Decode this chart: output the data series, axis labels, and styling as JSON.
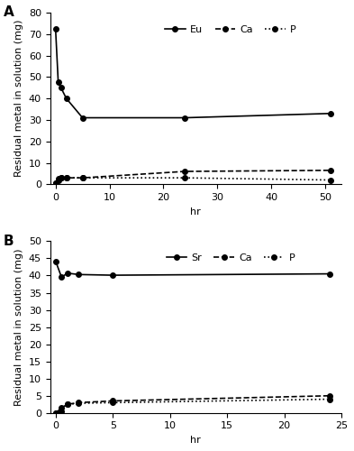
{
  "panel_A": {
    "label": "A",
    "eu_x": [
      0,
      0.5,
      1,
      2,
      5,
      24,
      51
    ],
    "eu_y": [
      72.5,
      47.5,
      45,
      40,
      31,
      31,
      33
    ],
    "ca_x": [
      0,
      0.5,
      1,
      2,
      5,
      24,
      51
    ],
    "ca_y": [
      0.5,
      2.5,
      3,
      3,
      3,
      6,
      6.5
    ],
    "p_x": [
      0,
      0.5,
      1,
      2,
      5,
      24,
      51
    ],
    "p_y": [
      0.5,
      2,
      3,
      3,
      3,
      3,
      2
    ],
    "ylim": [
      0,
      80
    ],
    "yticks": [
      0,
      10,
      20,
      30,
      40,
      50,
      60,
      70,
      80
    ],
    "xlim": [
      -1,
      53
    ],
    "xticks": [
      0,
      10,
      20,
      30,
      40,
      50
    ],
    "xlabel": "hr",
    "ylabel": "Residual metal in solution (mg)",
    "eu_label": "Eu",
    "ca_label": "Ca",
    "p_label": "P"
  },
  "panel_B": {
    "label": "B",
    "sr_x": [
      0,
      0.5,
      1,
      2,
      5,
      24
    ],
    "sr_y": [
      44,
      39.5,
      40.7,
      40.3,
      40.1,
      40.5
    ],
    "ca_x": [
      0,
      0.5,
      1,
      2,
      5,
      24
    ],
    "ca_y": [
      0,
      1.5,
      2.5,
      3.0,
      3.5,
      5.0
    ],
    "p_x": [
      0,
      0.5,
      1,
      2,
      5,
      24
    ],
    "p_y": [
      0,
      0.5,
      2.5,
      2.8,
      3.0,
      4.0
    ],
    "ylim": [
      0,
      50
    ],
    "yticks": [
      0,
      5,
      10,
      15,
      20,
      25,
      30,
      35,
      40,
      45,
      50
    ],
    "xlim": [
      -0.5,
      25
    ],
    "xticks": [
      0,
      5,
      10,
      15,
      20,
      25
    ],
    "xlabel": "hr",
    "ylabel": "Residual metal in solution (mg)",
    "sr_label": "Sr",
    "ca_label": "Ca",
    "p_label": "P"
  },
  "line_color": "#000000",
  "marker_style": "o",
  "marker_size": 4,
  "marker_facecolor": "#000000",
  "font_size": 8,
  "legend_fontsize": 8,
  "label_fontsize": 11
}
